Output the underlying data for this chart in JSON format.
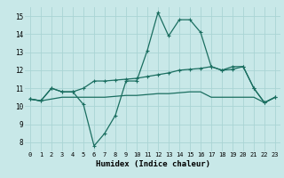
{
  "x": [
    0,
    1,
    2,
    3,
    4,
    5,
    6,
    7,
    8,
    9,
    10,
    11,
    12,
    13,
    14,
    15,
    16,
    17,
    18,
    19,
    20,
    21,
    22,
    23
  ],
  "line1": [
    10.4,
    10.3,
    11.0,
    10.8,
    10.8,
    10.1,
    7.8,
    8.5,
    9.5,
    11.4,
    11.4,
    13.1,
    15.2,
    13.9,
    14.8,
    14.8,
    14.1,
    12.2,
    12.0,
    12.2,
    12.2,
    11.0,
    10.2,
    10.5
  ],
  "line2": [
    10.4,
    10.3,
    11.0,
    10.8,
    10.8,
    11.0,
    11.4,
    11.4,
    11.45,
    11.5,
    11.55,
    11.65,
    11.75,
    11.85,
    12.0,
    12.05,
    12.1,
    12.2,
    12.0,
    12.05,
    12.2,
    11.0,
    10.2,
    10.5
  ],
  "line3": [
    10.4,
    10.3,
    10.4,
    10.5,
    10.5,
    10.5,
    10.5,
    10.5,
    10.55,
    10.6,
    10.6,
    10.65,
    10.7,
    10.7,
    10.75,
    10.8,
    10.8,
    10.5,
    10.5,
    10.5,
    10.5,
    10.5,
    10.2,
    10.5
  ],
  "bg_color": "#c8e8e8",
  "grid_color": "#aad4d4",
  "line_color": "#1a6e60",
  "xlabel": "Humidex (Indice chaleur)",
  "xlim": [
    -0.5,
    23.5
  ],
  "ylim": [
    7.5,
    15.5
  ],
  "yticks": [
    8,
    9,
    10,
    11,
    12,
    13,
    14,
    15
  ],
  "xticks": [
    0,
    1,
    2,
    3,
    4,
    5,
    6,
    7,
    8,
    9,
    10,
    11,
    12,
    13,
    14,
    15,
    16,
    17,
    18,
    19,
    20,
    21,
    22,
    23
  ],
  "marker": "+"
}
